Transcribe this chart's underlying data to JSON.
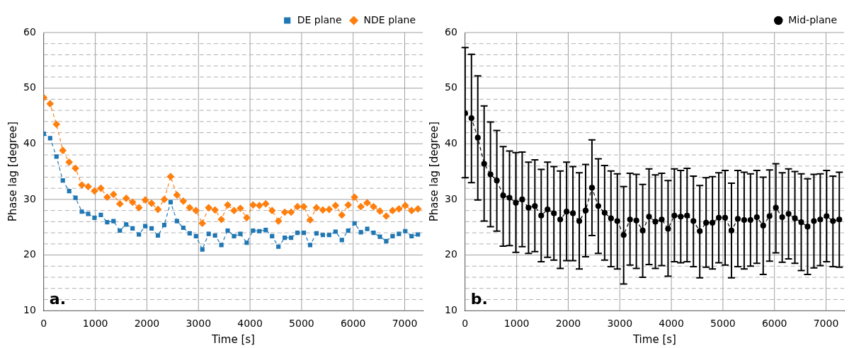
{
  "chart_data": [
    {
      "type": "line",
      "xlabel": "Time [s]",
      "ylabel": "Phase lag [degree]",
      "annotations": [
        "a."
      ],
      "legend": "top right",
      "grid": true,
      "line_style": "dashed",
      "xlim": [
        0,
        7350
      ],
      "ylim": [
        10,
        60
      ],
      "xticks": [
        0,
        1000,
        2000,
        3000,
        4000,
        5000,
        6000,
        7000
      ],
      "yticks": [
        10,
        {
          "value": 12,
          "label": null
        },
        {
          "value": 14,
          "label": null
        },
        {
          "value": 16,
          "label": null
        },
        {
          "value": 18,
          "label": null
        },
        20,
        {
          "value": 22,
          "label": null
        },
        {
          "value": 24,
          "label": null
        },
        {
          "value": 26,
          "label": null
        },
        {
          "value": 28,
          "label": null
        },
        30,
        {
          "value": 32,
          "label": null
        },
        {
          "value": 34,
          "label": null
        },
        {
          "value": 36,
          "label": null
        },
        {
          "value": 38,
          "label": null
        },
        40,
        {
          "value": 42,
          "label": null
        },
        {
          "value": 44,
          "label": null
        },
        {
          "value": 46,
          "label": null
        },
        {
          "value": 48,
          "label": null
        },
        50,
        {
          "value": 52,
          "label": null
        },
        {
          "value": 54,
          "label": null
        },
        {
          "value": 56,
          "label": null
        },
        {
          "value": 58,
          "label": null
        },
        60
      ],
      "x": [
        0,
        123,
        246,
        369,
        492,
        615,
        738,
        861,
        984,
        1107,
        1230,
        1353,
        1476,
        1599,
        1722,
        1845,
        1968,
        2091,
        2214,
        2337,
        2460,
        2583,
        2706,
        2829,
        2952,
        3075,
        3198,
        3321,
        3444,
        3567,
        3690,
        3813,
        3936,
        4059,
        4182,
        4305,
        4428,
        4551,
        4674,
        4797,
        4920,
        5043,
        5166,
        5289,
        5412,
        5535,
        5658,
        5781,
        5904,
        6027,
        6150,
        6273,
        6396,
        6519,
        6642,
        6765,
        6888,
        7011,
        7134,
        7257
      ],
      "series": [
        {
          "name": "DE plane",
          "color": "#1f77b4",
          "marker": "square",
          "values": [
            41.8,
            41.0,
            37.7,
            33.4,
            31.5,
            30.3,
            27.8,
            27.4,
            26.7,
            27.2,
            25.9,
            26.1,
            24.4,
            25.5,
            24.8,
            23.7,
            25.2,
            24.8,
            23.5,
            25.4,
            29.5,
            26.1,
            24.9,
            23.9,
            23.4,
            21.0,
            23.8,
            23.5,
            21.8,
            24.4,
            23.4,
            23.8,
            22.2,
            24.4,
            24.3,
            24.5,
            23.4,
            21.5,
            23.1,
            23.1,
            24.0,
            24.0,
            21.8,
            23.9,
            23.6,
            23.6,
            24.2,
            22.7,
            24.4,
            25.7,
            24.1,
            24.7,
            24.0,
            23.3,
            22.5,
            23.4,
            23.8,
            24.3,
            23.4,
            23.7
          ]
        },
        {
          "name": "NDE plane",
          "color": "#ff7f0e",
          "marker": "diamond",
          "values": [
            48.3,
            47.2,
            43.5,
            38.8,
            36.7,
            35.6,
            32.6,
            32.3,
            31.5,
            32.0,
            30.4,
            30.9,
            29.2,
            30.2,
            29.5,
            28.5,
            29.9,
            29.3,
            28.2,
            30.0,
            34.1,
            30.8,
            29.7,
            28.5,
            28.0,
            25.7,
            28.5,
            28.1,
            26.4,
            29.0,
            28.0,
            28.4,
            26.7,
            29.0,
            28.9,
            29.2,
            28.0,
            26.1,
            27.7,
            27.7,
            28.7,
            28.7,
            26.3,
            28.5,
            28.1,
            28.2,
            28.9,
            27.2,
            29.0,
            30.4,
            28.7,
            29.4,
            28.7,
            27.9,
            27.0,
            28.0,
            28.3,
            28.9,
            28.0,
            28.3
          ]
        }
      ]
    },
    {
      "type": "line",
      "xlabel": "Time [s]",
      "ylabel": "Phase lag [degree]",
      "annotations": [
        "b."
      ],
      "legend": "top right",
      "grid": true,
      "line_style": "dashed",
      "xlim": [
        0,
        7350
      ],
      "ylim": [
        10,
        60
      ],
      "xticks": [
        0,
        1000,
        2000,
        3000,
        4000,
        5000,
        6000,
        7000
      ],
      "yticks": [
        10,
        {
          "value": 12,
          "label": null
        },
        {
          "value": 14,
          "label": null
        },
        {
          "value": 16,
          "label": null
        },
        {
          "value": 18,
          "label": null
        },
        20,
        {
          "value": 22,
          "label": null
        },
        {
          "value": 24,
          "label": null
        },
        {
          "value": 26,
          "label": null
        },
        {
          "value": 28,
          "label": null
        },
        30,
        {
          "value": 32,
          "label": null
        },
        {
          "value": 34,
          "label": null
        },
        {
          "value": 36,
          "label": null
        },
        {
          "value": 38,
          "label": null
        },
        40,
        {
          "value": 42,
          "label": null
        },
        {
          "value": 44,
          "label": null
        },
        {
          "value": 46,
          "label": null
        },
        {
          "value": 48,
          "label": null
        },
        50,
        {
          "value": 52,
          "label": null
        },
        {
          "value": 54,
          "label": null
        },
        {
          "value": 56,
          "label": null
        },
        {
          "value": 58,
          "label": null
        },
        60
      ],
      "x": [
        0,
        123,
        246,
        369,
        492,
        615,
        738,
        861,
        984,
        1107,
        1230,
        1353,
        1476,
        1599,
        1722,
        1845,
        1968,
        2091,
        2214,
        2337,
        2460,
        2583,
        2706,
        2829,
        2952,
        3075,
        3198,
        3321,
        3444,
        3567,
        3690,
        3813,
        3936,
        4059,
        4182,
        4305,
        4428,
        4551,
        4674,
        4797,
        4920,
        5043,
        5166,
        5289,
        5412,
        5535,
        5658,
        5781,
        5904,
        6027,
        6150,
        6273,
        6396,
        6519,
        6642,
        6765,
        6888,
        7011,
        7134,
        7257
      ],
      "series": [
        {
          "name": "Mid-plane",
          "color": "#000000",
          "marker": "circle",
          "values": [
            45.5,
            44.6,
            41.1,
            36.4,
            34.5,
            33.4,
            30.7,
            30.3,
            29.4,
            30.0,
            28.5,
            28.8,
            27.1,
            28.2,
            27.5,
            26.4,
            27.8,
            27.5,
            26.1,
            28.0,
            32.1,
            28.8,
            27.6,
            26.6,
            26.1,
            23.6,
            26.4,
            26.2,
            24.4,
            26.9,
            26.0,
            26.4,
            24.7,
            27.1,
            26.9,
            27.1,
            26.1,
            24.3,
            25.8,
            25.8,
            26.7,
            26.7,
            24.4,
            26.5,
            26.3,
            26.3,
            26.8,
            25.3,
            27.0,
            28.5,
            26.8,
            27.4,
            26.6,
            25.9,
            25.1,
            26.1,
            26.4,
            27.0,
            26.1,
            26.4
          ],
          "errors": [
            [
              33.9,
              57.3
            ],
            [
              33.0,
              56.1
            ],
            [
              29.9,
              52.2
            ],
            [
              26.1,
              46.8
            ],
            [
              25.1,
              43.9
            ],
            [
              24.3,
              42.4
            ],
            [
              21.6,
              39.5
            ],
            [
              21.7,
              38.7
            ],
            [
              20.5,
              38.4
            ],
            [
              21.5,
              38.5
            ],
            [
              20.3,
              36.7
            ],
            [
              20.6,
              37.1
            ],
            [
              18.8,
              35.4
            ],
            [
              19.6,
              36.7
            ],
            [
              19.1,
              35.9
            ],
            [
              17.6,
              35.1
            ],
            [
              19.0,
              36.7
            ],
            [
              19.0,
              35.9
            ],
            [
              17.5,
              34.8
            ],
            [
              19.7,
              36.3
            ],
            [
              23.5,
              40.7
            ],
            [
              20.3,
              37.3
            ],
            [
              19.1,
              36.1
            ],
            [
              17.9,
              35.1
            ],
            [
              17.5,
              34.6
            ],
            [
              14.8,
              32.3
            ],
            [
              18.2,
              34.7
            ],
            [
              17.6,
              34.5
            ],
            [
              16.0,
              32.7
            ],
            [
              18.3,
              35.5
            ],
            [
              17.6,
              34.4
            ],
            [
              18.1,
              34.7
            ],
            [
              16.2,
              33.4
            ],
            [
              18.8,
              35.5
            ],
            [
              18.6,
              35.2
            ],
            [
              18.8,
              35.6
            ],
            [
              17.9,
              34.2
            ],
            [
              15.9,
              32.5
            ],
            [
              17.8,
              33.9
            ],
            [
              17.5,
              34.1
            ],
            [
              18.6,
              34.8
            ],
            [
              18.2,
              35.2
            ],
            [
              15.9,
              32.9
            ],
            [
              17.9,
              35.2
            ],
            [
              17.5,
              34.9
            ],
            [
              18.0,
              34.6
            ],
            [
              18.5,
              35.2
            ],
            [
              16.5,
              34.0
            ],
            [
              18.9,
              35.3
            ],
            [
              20.4,
              36.4
            ],
            [
              18.7,
              34.8
            ],
            [
              19.3,
              35.5
            ],
            [
              18.5,
              35.0
            ],
            [
              17.2,
              34.6
            ],
            [
              16.5,
              33.7
            ],
            [
              17.7,
              34.5
            ],
            [
              18.1,
              34.6
            ],
            [
              18.8,
              35.2
            ],
            [
              17.9,
              34.2
            ],
            [
              17.8,
              34.9
            ]
          ]
        }
      ]
    }
  ]
}
